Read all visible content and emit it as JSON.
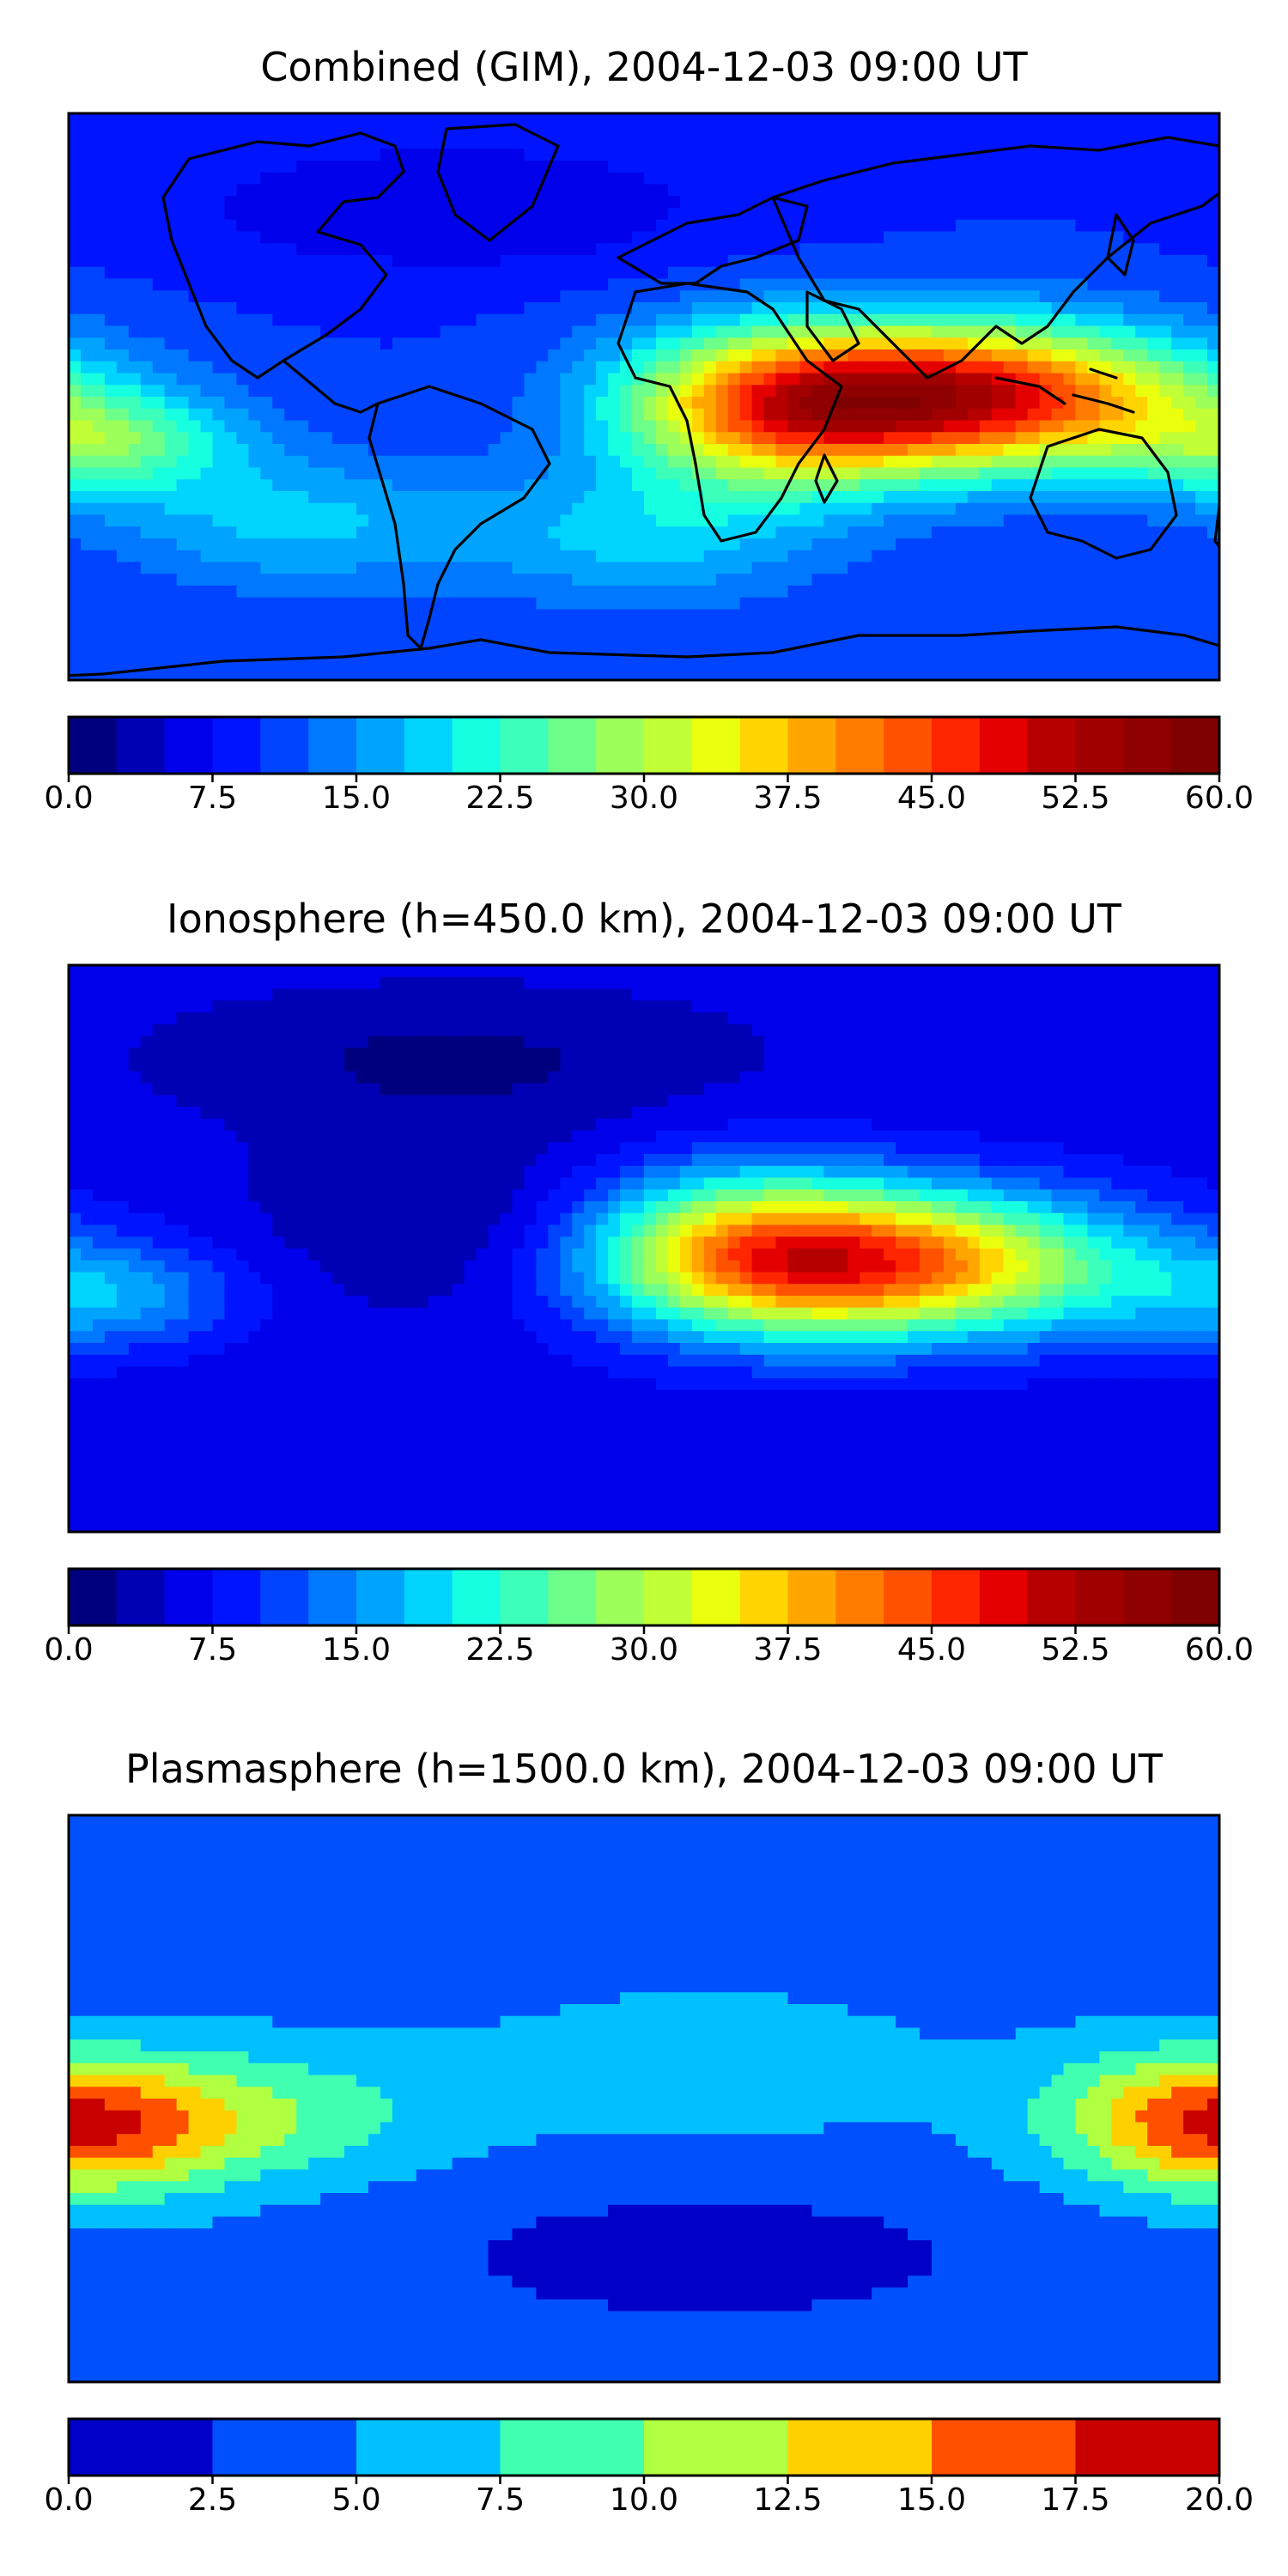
{
  "chart_data": [
    {
      "type": "heatmap",
      "title": "Combined (GIM), 2004-12-03 09:00 UT",
      "colorbar": {
        "min": 0,
        "max": 60,
        "levels": 24,
        "ticks": [
          "0.0",
          "7.5",
          "15.0",
          "22.5",
          "30.0",
          "37.5",
          "45.0",
          "52.5",
          "60.0"
        ],
        "colors": [
          "#00007f",
          "#0000b4",
          "#0000ea",
          "#0014ff",
          "#0044ff",
          "#0078ff",
          "#00a4ff",
          "#00d4ff",
          "#16ffe1",
          "#3cffba",
          "#6dff8a",
          "#9dff5a",
          "#c1ff36",
          "#eaff0d",
          "#ffd400",
          "#ffa700",
          "#ff7c00",
          "#ff5200",
          "#ff2500",
          "#e40000",
          "#b60000",
          "#a00000",
          "#8f0000",
          "#7f0000"
        ]
      },
      "map": {
        "base_value": 10,
        "blobs": [
          {
            "lon": 100,
            "lat": 0,
            "amp": 40,
            "slon": 50,
            "slat": 16
          },
          {
            "lon": 40,
            "lat": -5,
            "amp": 22,
            "slon": 35,
            "slat": 18
          },
          {
            "lon": -170,
            "lat": -15,
            "amp": 14,
            "slon": 30,
            "slat": 12
          },
          {
            "lon": -110,
            "lat": -40,
            "amp": 8,
            "slon": 40,
            "slat": 15
          },
          {
            "lon": 0,
            "lat": -45,
            "amp": 8,
            "slon": 40,
            "slat": 15
          },
          {
            "lon": -60,
            "lat": 60,
            "amp": -5,
            "slon": 60,
            "slat": 15
          }
        ]
      }
    },
    {
      "type": "heatmap",
      "title": "Ionosphere  (h=450.0 km), 2004-12-03 09:00 UT",
      "colorbar": {
        "min": 0,
        "max": 60,
        "levels": 24,
        "ticks": [
          "0.0",
          "7.5",
          "15.0",
          "22.5",
          "30.0",
          "37.5",
          "45.0",
          "52.5",
          "60.0"
        ],
        "colors": [
          "#00007f",
          "#0000b4",
          "#0000ea",
          "#0014ff",
          "#0044ff",
          "#0078ff",
          "#00a4ff",
          "#00d4ff",
          "#16ffe1",
          "#3cffba",
          "#6dff8a",
          "#9dff5a",
          "#c1ff36",
          "#eaff0d",
          "#ffd400",
          "#ffa700",
          "#ff7c00",
          "#ff5200",
          "#ff2500",
          "#e40000",
          "#b60000",
          "#a00000",
          "#8f0000",
          "#7f0000"
        ]
      },
      "map": {
        "base_value": 6,
        "blobs": [
          {
            "lon": 80,
            "lat": -5,
            "amp": 34,
            "slon": 50,
            "slat": 16
          },
          {
            "lon": 30,
            "lat": 0,
            "amp": 20,
            "slon": 35,
            "slat": 18
          },
          {
            "lon": -170,
            "lat": -15,
            "amp": 10,
            "slon": 30,
            "slat": 12
          },
          {
            "lon": -60,
            "lat": 10,
            "amp": -4,
            "slon": 40,
            "slat": 20
          },
          {
            "lon": -60,
            "lat": 60,
            "amp": -4,
            "slon": 60,
            "slat": 15
          }
        ]
      }
    },
    {
      "type": "heatmap",
      "title": "Plasmasphere (h=1500.0 km), 2004-12-03 09:00 UT",
      "colorbar": {
        "min": 0,
        "max": 20,
        "levels": 8,
        "ticks": [
          "0.0",
          "2.5",
          "5.0",
          "7.5",
          "10.0",
          "12.5",
          "15.0",
          "17.5",
          "20.0"
        ],
        "colors": [
          "#0000c8",
          "#0050ff",
          "#00c0ff",
          "#40ffb0",
          "#b0ff40",
          "#ffd000",
          "#ff5000",
          "#c80000"
        ]
      },
      "map": {
        "base_value": 4,
        "blobs": [
          {
            "lon": -170,
            "lat": -10,
            "amp": 9,
            "slon": 30,
            "slat": 15
          },
          {
            "lon": -120,
            "lat": -5,
            "amp": 5,
            "slon": 40,
            "slat": 15
          },
          {
            "lon": 160,
            "lat": -5,
            "amp": 6,
            "slon": 30,
            "slat": 15
          },
          {
            "lon": 20,
            "lat": 10,
            "amp": 2,
            "slon": 60,
            "slat": 20
          },
          {
            "lon": 20,
            "lat": -50,
            "amp": -3,
            "slon": 60,
            "slat": 15
          }
        ]
      }
    }
  ]
}
